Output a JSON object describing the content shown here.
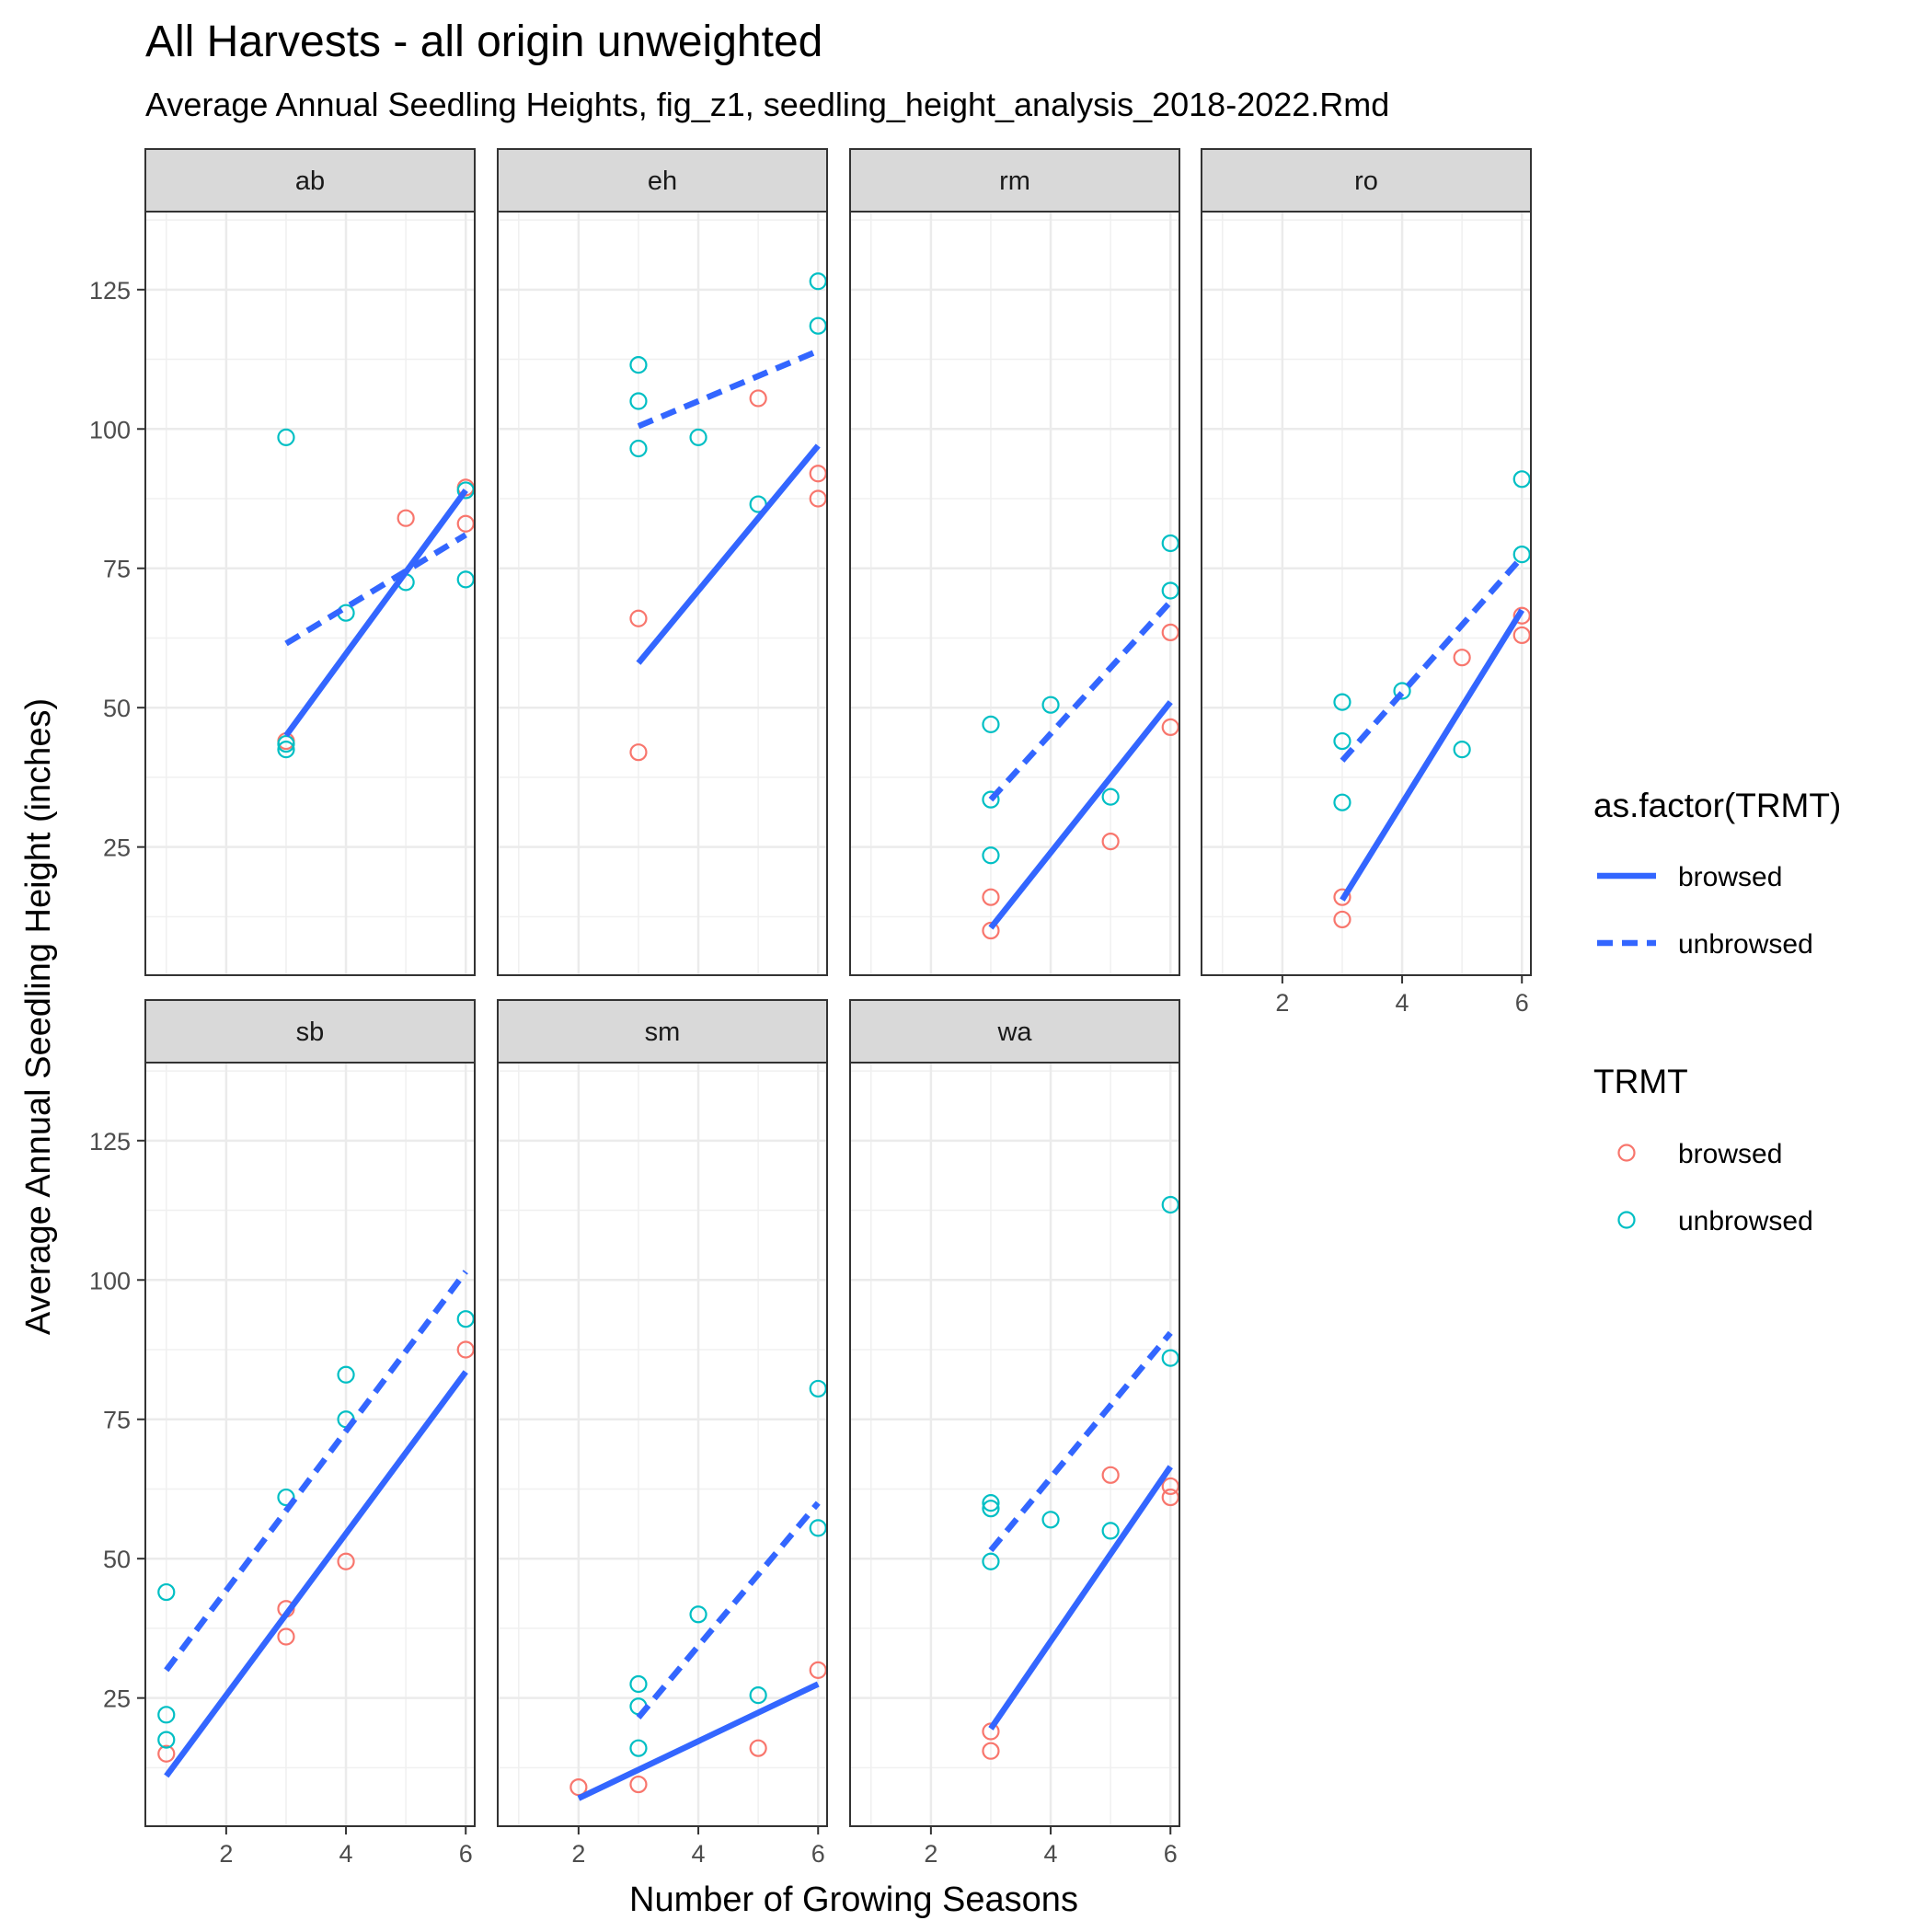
{
  "chart_data": {
    "type": "scatter",
    "title": "All Harvests - all origin unweighted",
    "subtitle": "Average Annual Seedling Heights, fig_z1, seedling_height_analysis_2018-2022.Rmd",
    "xlabel": "Number of Growing Seasons",
    "ylabel": "Average Annual Seedling Height (inches)",
    "xlim": [
      0.65,
      6.15
    ],
    "ylim": [
      2,
      139
    ],
    "x_ticks": [
      2,
      4,
      6
    ],
    "y_ticks": [
      25,
      50,
      75,
      100,
      125
    ],
    "grid": true,
    "legend_position": "right",
    "colors": {
      "browsed": "#F8766D",
      "unbrowsed": "#00BFC4",
      "fit_line": "#3366FF"
    },
    "legend": {
      "lines_title": "as.factor(TRMT)",
      "lines": [
        {
          "label": "browsed",
          "style": "solid"
        },
        {
          "label": "unbrowsed",
          "style": "dashed"
        }
      ],
      "points_title": "TRMT",
      "points": [
        {
          "label": "browsed",
          "color": "#F8766D"
        },
        {
          "label": "unbrowsed",
          "color": "#00BFC4"
        }
      ]
    },
    "panels": [
      {
        "label": "ab",
        "points": {
          "browsed": [
            [
              3,
              44
            ],
            [
              5,
              84
            ],
            [
              6,
              89.5
            ],
            [
              6,
              83
            ]
          ],
          "unbrowsed": [
            [
              3,
              98.5
            ],
            [
              3,
              43.5
            ],
            [
              3,
              42.5
            ],
            [
              4,
              67
            ],
            [
              5,
              72.5
            ],
            [
              6,
              73
            ],
            [
              6,
              89
            ]
          ]
        },
        "fits": {
          "browsed": [
            [
              3,
              45
            ],
            [
              6,
              89
            ]
          ],
          "unbrowsed": [
            [
              3,
              61.5
            ],
            [
              6,
              81
            ]
          ]
        }
      },
      {
        "label": "eh",
        "points": {
          "browsed": [
            [
              3,
              66
            ],
            [
              3,
              42
            ],
            [
              5,
              105.5
            ],
            [
              6,
              92
            ],
            [
              6,
              87.5
            ]
          ],
          "unbrowsed": [
            [
              3,
              111.5
            ],
            [
              3,
              105
            ],
            [
              3,
              96.5
            ],
            [
              4,
              98.5
            ],
            [
              5,
              86.5
            ],
            [
              6,
              126.5
            ],
            [
              6,
              118.5
            ]
          ]
        },
        "fits": {
          "browsed": [
            [
              3,
              58
            ],
            [
              6,
              97
            ]
          ],
          "unbrowsed": [
            [
              3,
              100.5
            ],
            [
              6,
              114
            ]
          ]
        }
      },
      {
        "label": "rm",
        "points": {
          "browsed": [
            [
              3,
              16
            ],
            [
              3,
              10
            ],
            [
              5,
              26
            ],
            [
              6,
              63.5
            ],
            [
              6,
              46.5
            ]
          ],
          "unbrowsed": [
            [
              3,
              47
            ],
            [
              3,
              33.5
            ],
            [
              3,
              23.5
            ],
            [
              4,
              50.5
            ],
            [
              5,
              34
            ],
            [
              6,
              79.5
            ],
            [
              6,
              71
            ]
          ]
        },
        "fits": {
          "browsed": [
            [
              3,
              10.5
            ],
            [
              6,
              51
            ]
          ],
          "unbrowsed": [
            [
              3,
              33.5
            ],
            [
              6,
              69
            ]
          ]
        }
      },
      {
        "label": "ro",
        "points": {
          "browsed": [
            [
              3,
              16
            ],
            [
              3,
              12
            ],
            [
              5,
              59
            ],
            [
              6,
              66.5
            ],
            [
              6,
              63
            ]
          ],
          "unbrowsed": [
            [
              3,
              51
            ],
            [
              3,
              44
            ],
            [
              3,
              33
            ],
            [
              4,
              53
            ],
            [
              5,
              42.5
            ],
            [
              6,
              91
            ],
            [
              6,
              77.5
            ]
          ]
        },
        "fits": {
          "browsed": [
            [
              3,
              15.5
            ],
            [
              6,
              67.5
            ]
          ],
          "unbrowsed": [
            [
              3,
              40.5
            ],
            [
              6,
              77
            ]
          ]
        }
      },
      {
        "label": "sb",
        "points": {
          "browsed": [
            [
              1,
              15
            ],
            [
              3,
              41
            ],
            [
              3,
              36
            ],
            [
              4,
              49.5
            ],
            [
              6,
              87.5
            ]
          ],
          "unbrowsed": [
            [
              1,
              44
            ],
            [
              1,
              22
            ],
            [
              1,
              17.5
            ],
            [
              3,
              61
            ],
            [
              4,
              83
            ],
            [
              4,
              75
            ],
            [
              6,
              93
            ]
          ]
        },
        "fits": {
          "browsed": [
            [
              1,
              11
            ],
            [
              6,
              83.5
            ]
          ],
          "unbrowsed": [
            [
              1,
              30
            ],
            [
              6,
              101.5
            ]
          ]
        }
      },
      {
        "label": "sm",
        "points": {
          "browsed": [
            [
              2,
              9
            ],
            [
              3,
              9.5
            ],
            [
              5,
              16
            ],
            [
              6,
              30
            ]
          ],
          "unbrowsed": [
            [
              3,
              27.5
            ],
            [
              3,
              23.5
            ],
            [
              3,
              16
            ],
            [
              4,
              40
            ],
            [
              5,
              25.5
            ],
            [
              6,
              80.5
            ],
            [
              6,
              55.5
            ]
          ]
        },
        "fits": {
          "browsed": [
            [
              2,
              7
            ],
            [
              6,
              27.5
            ]
          ],
          "unbrowsed": [
            [
              3,
              21.5
            ],
            [
              6,
              60
            ]
          ]
        }
      },
      {
        "label": "wa",
        "points": {
          "browsed": [
            [
              3,
              19
            ],
            [
              3,
              15.5
            ],
            [
              5,
              65
            ],
            [
              6,
              63
            ],
            [
              6,
              61
            ]
          ],
          "unbrowsed": [
            [
              3,
              60
            ],
            [
              3,
              59
            ],
            [
              3,
              49.5
            ],
            [
              4,
              57
            ],
            [
              5,
              55
            ],
            [
              6,
              113.5
            ],
            [
              6,
              86
            ]
          ]
        },
        "fits": {
          "browsed": [
            [
              3,
              19.5
            ],
            [
              6,
              66.5
            ]
          ],
          "unbrowsed": [
            [
              3,
              51.5
            ],
            [
              6,
              90.5
            ]
          ]
        }
      }
    ]
  }
}
